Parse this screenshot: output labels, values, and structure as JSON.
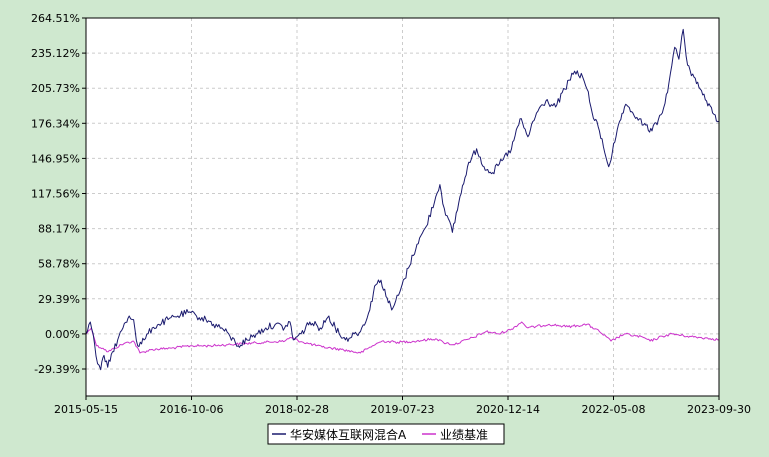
{
  "chart_data": {
    "type": "line",
    "title": "",
    "xlabel": "",
    "ylabel": "",
    "x_ticks": [
      "2015-05-15",
      "2016-10-06",
      "2018-02-28",
      "2019-07-23",
      "2020-12-14",
      "2022-05-08",
      "2023-09-30"
    ],
    "x_range": [
      "2015-05-15",
      "2023-09-30"
    ],
    "y_ticks": [
      "-29.39%",
      "0.00%",
      "29.39%",
      "58.78%",
      "88.17%",
      "117.56%",
      "146.95%",
      "176.34%",
      "205.73%",
      "235.12%",
      "264.51%"
    ],
    "ylim": [
      -52,
      264.51
    ],
    "grid": true,
    "legend_position": "bottom-center",
    "series": [
      {
        "name": "华安媒体互联网混合A",
        "color": "#1a1a6e",
        "points": [
          [
            "2015-05-15",
            0
          ],
          [
            "2015-06-05",
            10
          ],
          [
            "2015-06-25",
            -8
          ],
          [
            "2015-07-10",
            -25
          ],
          [
            "2015-07-25",
            -30
          ],
          [
            "2015-08-10",
            -18
          ],
          [
            "2015-08-28",
            -28
          ],
          [
            "2015-09-20",
            -15
          ],
          [
            "2015-10-15",
            -5
          ],
          [
            "2015-11-10",
            5
          ],
          [
            "2015-12-10",
            15
          ],
          [
            "2015-12-31",
            12
          ],
          [
            "2016-01-20",
            -10
          ],
          [
            "2016-02-20",
            -5
          ],
          [
            "2016-03-30",
            5
          ],
          [
            "2016-05-01",
            8
          ],
          [
            "2016-06-15",
            12
          ],
          [
            "2016-08-01",
            15
          ],
          [
            "2016-09-20",
            18
          ],
          [
            "2016-10-30",
            15
          ],
          [
            "2016-12-15",
            12
          ],
          [
            "2017-01-20",
            8
          ],
          [
            "2017-03-01",
            5
          ],
          [
            "2017-04-10",
            -2
          ],
          [
            "2017-05-20",
            -10
          ],
          [
            "2017-07-01",
            -5
          ],
          [
            "2017-08-15",
            0
          ],
          [
            "2017-09-30",
            5
          ],
          [
            "2017-11-15",
            8
          ],
          [
            "2017-12-30",
            5
          ],
          [
            "2018-01-25",
            10
          ],
          [
            "2018-02-10",
            -5
          ],
          [
            "2018-03-20",
            0
          ],
          [
            "2018-05-01",
            10
          ],
          [
            "2018-06-20",
            5
          ],
          [
            "2018-08-01",
            15
          ],
          [
            "2018-09-01",
            5
          ],
          [
            "2018-10-20",
            -5
          ],
          [
            "2018-12-01",
            0
          ],
          [
            "2019-01-01",
            2
          ],
          [
            "2019-02-15",
            20
          ],
          [
            "2019-03-10",
            40
          ],
          [
            "2019-04-10",
            45
          ],
          [
            "2019-05-10",
            30
          ],
          [
            "2019-06-01",
            20
          ],
          [
            "2019-07-10",
            35
          ],
          [
            "2019-08-20",
            55
          ],
          [
            "2019-10-01",
            75
          ],
          [
            "2019-11-15",
            90
          ],
          [
            "2019-12-31",
            115
          ],
          [
            "2020-01-20",
            125
          ],
          [
            "2020-02-10",
            105
          ],
          [
            "2020-03-20",
            85
          ],
          [
            "2020-04-20",
            110
          ],
          [
            "2020-06-01",
            140
          ],
          [
            "2020-07-15",
            155
          ],
          [
            "2020-08-20",
            140
          ],
          [
            "2020-10-01",
            135
          ],
          [
            "2020-11-15",
            145
          ],
          [
            "2020-12-31",
            155
          ],
          [
            "2021-02-10",
            180
          ],
          [
            "2021-03-20",
            165
          ],
          [
            "2021-05-01",
            185
          ],
          [
            "2021-06-15",
            195
          ],
          [
            "2021-08-01",
            190
          ],
          [
            "2021-09-15",
            205
          ],
          [
            "2021-11-01",
            220
          ],
          [
            "2021-12-10",
            215
          ],
          [
            "2021-12-31",
            205
          ],
          [
            "2022-01-25",
            185
          ],
          [
            "2022-03-01",
            170
          ],
          [
            "2022-04-15",
            140
          ],
          [
            "2022-05-20",
            165
          ],
          [
            "2022-06-30",
            190
          ],
          [
            "2022-08-10",
            185
          ],
          [
            "2022-09-30",
            175
          ],
          [
            "2022-11-10",
            170
          ],
          [
            "2022-12-30",
            185
          ],
          [
            "2023-01-31",
            210
          ],
          [
            "2023-02-28",
            240
          ],
          [
            "2023-03-20",
            230
          ],
          [
            "2023-04-10",
            255
          ],
          [
            "2023-05-01",
            225
          ],
          [
            "2023-06-01",
            215
          ],
          [
            "2023-07-01",
            205
          ],
          [
            "2023-08-01",
            195
          ],
          [
            "2023-08-30",
            185
          ],
          [
            "2023-09-30",
            178
          ]
        ]
      },
      {
        "name": "业绩基准",
        "color": "#cc33cc",
        "points": [
          [
            "2015-05-15",
            0
          ],
          [
            "2015-06-10",
            5
          ],
          [
            "2015-07-05",
            -10
          ],
          [
            "2015-08-05",
            -12
          ],
          [
            "2015-08-30",
            -15
          ],
          [
            "2015-09-30",
            -12
          ],
          [
            "2015-11-15",
            -8
          ],
          [
            "2015-12-31",
            -6
          ],
          [
            "2016-01-31",
            -16
          ],
          [
            "2016-03-30",
            -13
          ],
          [
            "2016-06-30",
            -12
          ],
          [
            "2016-09-30",
            -10
          ],
          [
            "2016-12-31",
            -10
          ],
          [
            "2017-03-31",
            -9
          ],
          [
            "2017-06-30",
            -8
          ],
          [
            "2017-09-30",
            -7
          ],
          [
            "2017-12-31",
            -6
          ],
          [
            "2018-01-25",
            -3
          ],
          [
            "2018-03-30",
            -7
          ],
          [
            "2018-06-30",
            -11
          ],
          [
            "2018-09-30",
            -13
          ],
          [
            "2018-12-31",
            -16
          ],
          [
            "2019-02-28",
            -10
          ],
          [
            "2019-04-15",
            -6
          ],
          [
            "2019-06-30",
            -7
          ],
          [
            "2019-09-30",
            -6
          ],
          [
            "2019-12-31",
            -4
          ],
          [
            "2020-02-05",
            -7
          ],
          [
            "2020-03-25",
            -9
          ],
          [
            "2020-06-30",
            -3
          ],
          [
            "2020-08-30",
            2
          ],
          [
            "2020-10-30",
            0
          ],
          [
            "2020-12-31",
            4
          ],
          [
            "2021-02-18",
            10
          ],
          [
            "2021-03-20",
            5
          ],
          [
            "2021-06-30",
            8
          ],
          [
            "2021-09-30",
            6
          ],
          [
            "2021-12-31",
            8
          ],
          [
            "2022-03-01",
            2
          ],
          [
            "2022-04-26",
            -6
          ],
          [
            "2022-06-30",
            0
          ],
          [
            "2022-09-30",
            -3
          ],
          [
            "2022-11-01",
            -6
          ],
          [
            "2022-12-31",
            -2
          ],
          [
            "2023-02-15",
            0
          ],
          [
            "2023-04-30",
            -2
          ],
          [
            "2023-06-30",
            -3
          ],
          [
            "2023-08-30",
            -4
          ],
          [
            "2023-09-30",
            -5
          ]
        ]
      }
    ]
  }
}
